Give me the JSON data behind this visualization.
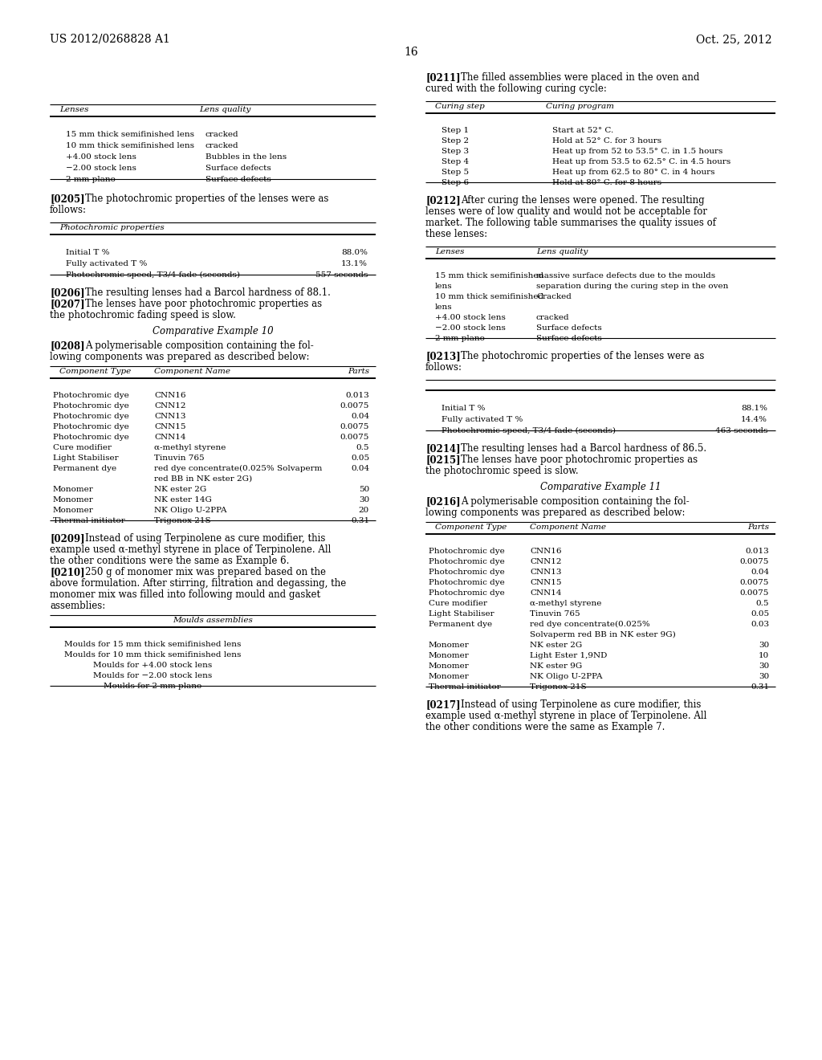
{
  "bg_color": "#ffffff",
  "header_left": "US 2012/0268828 A1",
  "header_right": "Oct. 25, 2012",
  "page_number": "16",
  "table1_cols": [
    "Lenses",
    "Lens quality"
  ],
  "table1_rows": [
    [
      "15 mm thick semifinished lens",
      "cracked"
    ],
    [
      "10 mm thick semifinished lens",
      "cracked"
    ],
    [
      "+4.00 stock lens",
      "Bubbles in the lens"
    ],
    [
      "−2.00 stock lens",
      "Surface defects"
    ],
    [
      "2 mm plano",
      "Surface defects"
    ]
  ],
  "table2_title": "Photochromic properties",
  "table2_rows": [
    [
      "Initial T %",
      "88.0%"
    ],
    [
      "Fully activated T %",
      "13.1%"
    ],
    [
      "Photochromic speed, T3/4 fade (seconds)",
      "557 seconds"
    ]
  ],
  "heading_comp10": "Comparative Example 10",
  "table3_cols": [
    "Component Type",
    "Component Name",
    "Parts"
  ],
  "table3_rows": [
    [
      "Photochromic dye",
      "CNN16",
      "0.013"
    ],
    [
      "Photochromic dye",
      "CNN12",
      "0.0075"
    ],
    [
      "Photochromic dye",
      "CNN13",
      "0.04"
    ],
    [
      "Photochromic dye",
      "CNN15",
      "0.0075"
    ],
    [
      "Photochromic dye",
      "CNN14",
      "0.0075"
    ],
    [
      "Cure modifier",
      "α-methyl styrene",
      "0.5"
    ],
    [
      "Light Stabiliser",
      "Tinuvin 765",
      "0.05"
    ],
    [
      "Permanent dye",
      "red dye concentrate(0.025% Solvaperm",
      "0.04"
    ],
    [
      "",
      "red BB in NK ester 2G)",
      ""
    ],
    [
      "Monomer",
      "NK ester 2G",
      "50"
    ],
    [
      "Monomer",
      "NK ester 14G",
      "30"
    ],
    [
      "Monomer",
      "NK Oligo U-2PPA",
      "20"
    ],
    [
      "Thermal initiator",
      "Trigonox 21S",
      "0.31"
    ]
  ],
  "table4_title": "Moulds assemblies",
  "table4_rows": [
    "Moulds for 15 mm thick semifinished lens",
    "Moulds for 10 mm thick semifinished lens",
    "Moulds for +4.00 stock lens",
    "Moulds for −2.00 stock lens",
    "Moulds for 2 mm plano"
  ],
  "table5_cols": [
    "Curing step",
    "Curing program"
  ],
  "table5_rows": [
    [
      "Step 1",
      "Start at 52° C."
    ],
    [
      "Step 2",
      "Hold at 52° C. for 3 hours"
    ],
    [
      "Step 3",
      "Heat up from 52 to 53.5° C. in 1.5 hours"
    ],
    [
      "Step 4",
      "Heat up from 53.5 to 62.5° C. in 4.5 hours"
    ],
    [
      "Step 5",
      "Heat up from 62.5 to 80° C. in 4 hours"
    ],
    [
      "Step 6",
      "Hold at 80° C. for 8 hours"
    ]
  ],
  "table6_cols": [
    "Lenses",
    "Lens quality"
  ],
  "table6_rows": [
    [
      "15 mm thick semifinished",
      "massive surface defects due to the moulds"
    ],
    [
      "lens",
      "separation during the curing step in the oven"
    ],
    [
      "10 mm thick semifinished",
      "Cracked"
    ],
    [
      "lens",
      ""
    ],
    [
      "+4.00 stock lens",
      "cracked"
    ],
    [
      "−2.00 stock lens",
      "Surface defects"
    ],
    [
      "2 mm plano",
      "Surface defects"
    ]
  ],
  "table7_rows": [
    [
      "Initial T %",
      "88.1%"
    ],
    [
      "Fully activated T %",
      "14.4%"
    ],
    [
      "Photochromic speed, T3/4 fade (seconds)",
      "463 seconds"
    ]
  ],
  "heading_comp11": "Comparative Example 11",
  "table8_cols": [
    "Component Type",
    "Component Name",
    "Parts"
  ],
  "table8_rows": [
    [
      "Photochromic dye",
      "CNN16",
      "0.013"
    ],
    [
      "Photochromic dye",
      "CNN12",
      "0.0075"
    ],
    [
      "Photochromic dye",
      "CNN13",
      "0.04"
    ],
    [
      "Photochromic dye",
      "CNN15",
      "0.0075"
    ],
    [
      "Photochromic dye",
      "CNN14",
      "0.0075"
    ],
    [
      "Cure modifier",
      "α-methyl styrene",
      "0.5"
    ],
    [
      "Light Stabiliser",
      "Tinuvin 765",
      "0.05"
    ],
    [
      "Permanent dye",
      "red dye concentrate(0.025%",
      "0.03"
    ],
    [
      "",
      "Solvaperm red BB in NK ester 9G)",
      ""
    ],
    [
      "Monomer",
      "NK ester 2G",
      "30"
    ],
    [
      "Monomer",
      "Light Ester 1,9ND",
      "10"
    ],
    [
      "Monomer",
      "NK ester 9G",
      "30"
    ],
    [
      "Monomer",
      "NK Oligo U-2PPA",
      "30"
    ],
    [
      "Thermal initiator",
      "Trigonox 21S",
      "0.31"
    ]
  ]
}
